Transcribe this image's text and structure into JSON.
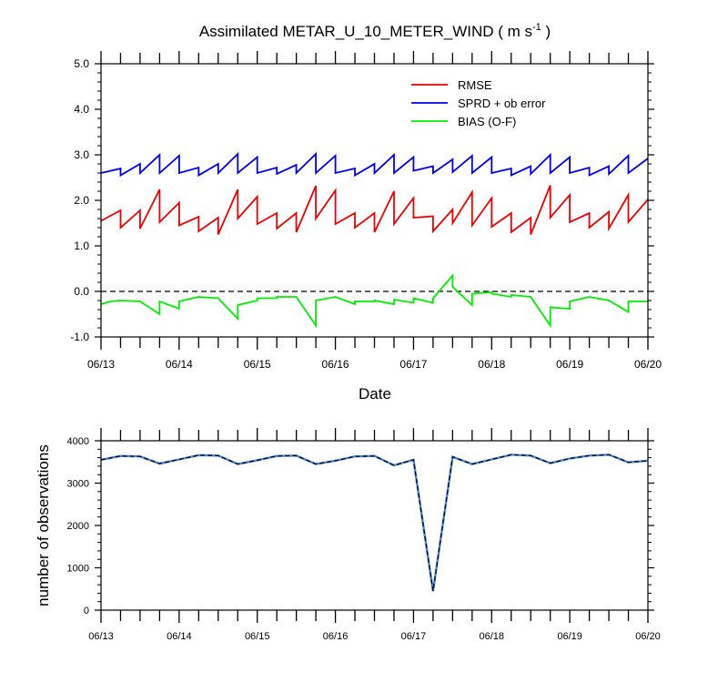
{
  "chart_data": [
    {
      "type": "line",
      "title": "Assimilated METAR_U_10_METER_WIND ( m s",
      "title_sup": "-1",
      "title_end": " )",
      "xlabel": "Date",
      "ylabel": "",
      "ylim": [
        -1.0,
        5.0
      ],
      "yticks": [
        "5.0",
        "4.0",
        "3.0",
        "2.0",
        "1.0",
        "0.0",
        "-1.0"
      ],
      "xticks": [
        "06/13",
        "06/14",
        "06/15",
        "06/16",
        "06/17",
        "06/18",
        "06/19",
        "06/20"
      ],
      "zero_line": "dashed",
      "legend_position": "top-right",
      "series": [
        {
          "name": "RMSE",
          "color": "#ee0000",
          "points": [
            [
              0,
              1.55
            ],
            [
              0.25,
              1.78
            ],
            [
              0.25,
              1.4
            ],
            [
              0.5,
              1.78
            ],
            [
              0.5,
              1.38
            ],
            [
              0.75,
              2.24
            ],
            [
              0.75,
              1.52
            ],
            [
              1,
              1.95
            ],
            [
              1,
              1.45
            ],
            [
              1.25,
              1.64
            ],
            [
              1.25,
              1.32
            ],
            [
              1.5,
              1.62
            ],
            [
              1.5,
              1.25
            ],
            [
              1.75,
              2.24
            ],
            [
              1.75,
              1.6
            ],
            [
              2,
              2.08
            ],
            [
              2,
              1.48
            ],
            [
              2.25,
              1.72
            ],
            [
              2.25,
              1.38
            ],
            [
              2.5,
              1.72
            ],
            [
              2.5,
              1.3
            ],
            [
              2.75,
              2.32
            ],
            [
              2.75,
              1.6
            ],
            [
              3,
              2.22
            ],
            [
              3,
              1.48
            ],
            [
              3.25,
              1.72
            ],
            [
              3.25,
              1.4
            ],
            [
              3.5,
              1.72
            ],
            [
              3.5,
              1.3
            ],
            [
              3.75,
              2.2
            ],
            [
              3.75,
              1.48
            ],
            [
              4,
              2.05
            ],
            [
              4,
              1.62
            ],
            [
              4.25,
              1.65
            ],
            [
              4.25,
              1.32
            ],
            [
              4.5,
              1.8
            ],
            [
              4.5,
              1.5
            ],
            [
              4.75,
              2.18
            ],
            [
              4.75,
              1.45
            ],
            [
              5,
              2.05
            ],
            [
              5,
              1.42
            ],
            [
              5.25,
              1.72
            ],
            [
              5.25,
              1.3
            ],
            [
              5.5,
              1.62
            ],
            [
              5.5,
              1.25
            ],
            [
              5.75,
              2.33
            ],
            [
              5.75,
              1.62
            ],
            [
              6,
              2.12
            ],
            [
              6,
              1.52
            ],
            [
              6.25,
              1.72
            ],
            [
              6.25,
              1.4
            ],
            [
              6.5,
              1.75
            ],
            [
              6.5,
              1.38
            ],
            [
              6.75,
              2.12
            ],
            [
              6.75,
              1.52
            ],
            [
              7,
              2.02
            ]
          ]
        },
        {
          "name": "SPRD + ob error",
          "color": "#0000ee",
          "points": [
            [
              0,
              2.6
            ],
            [
              0.25,
              2.7
            ],
            [
              0.25,
              2.55
            ],
            [
              0.5,
              2.8
            ],
            [
              0.5,
              2.6
            ],
            [
              0.75,
              3.0
            ],
            [
              0.75,
              2.6
            ],
            [
              1,
              2.98
            ],
            [
              1,
              2.6
            ],
            [
              1.25,
              2.72
            ],
            [
              1.25,
              2.55
            ],
            [
              1.5,
              2.8
            ],
            [
              1.5,
              2.6
            ],
            [
              1.75,
              3.02
            ],
            [
              1.75,
              2.6
            ],
            [
              2,
              2.95
            ],
            [
              2,
              2.6
            ],
            [
              2.25,
              2.72
            ],
            [
              2.25,
              2.58
            ],
            [
              2.5,
              2.78
            ],
            [
              2.5,
              2.6
            ],
            [
              2.75,
              3.02
            ],
            [
              2.75,
              2.6
            ],
            [
              3,
              2.98
            ],
            [
              3,
              2.6
            ],
            [
              3.25,
              2.7
            ],
            [
              3.25,
              2.55
            ],
            [
              3.5,
              2.8
            ],
            [
              3.5,
              2.6
            ],
            [
              3.75,
              3.0
            ],
            [
              3.75,
              2.6
            ],
            [
              4,
              2.95
            ],
            [
              4,
              2.65
            ],
            [
              4.25,
              2.75
            ],
            [
              4.25,
              2.6
            ],
            [
              4.5,
              2.9
            ],
            [
              4.5,
              2.62
            ],
            [
              4.75,
              2.98
            ],
            [
              4.75,
              2.6
            ],
            [
              5,
              2.95
            ],
            [
              5,
              2.6
            ],
            [
              5.25,
              2.7
            ],
            [
              5.25,
              2.55
            ],
            [
              5.5,
              2.75
            ],
            [
              5.5,
              2.58
            ],
            [
              5.75,
              3.0
            ],
            [
              5.75,
              2.6
            ],
            [
              6,
              2.95
            ],
            [
              6,
              2.6
            ],
            [
              6.25,
              2.72
            ],
            [
              6.25,
              2.55
            ],
            [
              6.5,
              2.75
            ],
            [
              6.5,
              2.58
            ],
            [
              6.75,
              2.98
            ],
            [
              6.75,
              2.6
            ],
            [
              7,
              2.92
            ]
          ]
        },
        {
          "name": "BIAS (O-F)",
          "color": "#00ee00",
          "points": [
            [
              0,
              -0.28
            ],
            [
              0.12,
              -0.22
            ],
            [
              0.25,
              -0.2
            ],
            [
              0.25,
              -0.2
            ],
            [
              0.5,
              -0.22
            ],
            [
              0.5,
              -0.22
            ],
            [
              0.75,
              -0.5
            ],
            [
              0.75,
              -0.22
            ],
            [
              1,
              -0.38
            ],
            [
              1,
              -0.22
            ],
            [
              1.25,
              -0.12
            ],
            [
              1.25,
              -0.12
            ],
            [
              1.5,
              -0.15
            ],
            [
              1.5,
              -0.15
            ],
            [
              1.75,
              -0.6
            ],
            [
              1.75,
              -0.3
            ],
            [
              2,
              -0.2
            ],
            [
              2,
              -0.15
            ],
            [
              2.25,
              -0.15
            ],
            [
              2.25,
              -0.12
            ],
            [
              2.5,
              -0.12
            ],
            [
              2.5,
              -0.12
            ],
            [
              2.75,
              -0.75
            ],
            [
              2.75,
              -0.2
            ],
            [
              3,
              -0.12
            ],
            [
              3,
              -0.12
            ],
            [
              3.25,
              -0.28
            ],
            [
              3.25,
              -0.22
            ],
            [
              3.5,
              -0.22
            ],
            [
              3.5,
              -0.2
            ],
            [
              3.75,
              -0.28
            ],
            [
              3.75,
              -0.18
            ],
            [
              4,
              -0.25
            ],
            [
              4,
              -0.15
            ],
            [
              4.25,
              -0.25
            ],
            [
              4.25,
              -0.15
            ],
            [
              4.5,
              0.35
            ],
            [
              4.5,
              0.1
            ],
            [
              4.75,
              -0.3
            ],
            [
              4.75,
              -0.05
            ],
            [
              5,
              -0.02
            ],
            [
              5,
              -0.05
            ],
            [
              5.25,
              -0.12
            ],
            [
              5.25,
              -0.08
            ],
            [
              5.5,
              -0.12
            ],
            [
              5.5,
              -0.12
            ],
            [
              5.75,
              -0.75
            ],
            [
              5.75,
              -0.35
            ],
            [
              6,
              -0.38
            ],
            [
              6,
              -0.22
            ],
            [
              6.25,
              -0.12
            ],
            [
              6.25,
              -0.12
            ],
            [
              6.5,
              -0.2
            ],
            [
              6.5,
              -0.2
            ],
            [
              6.75,
              -0.45
            ],
            [
              6.75,
              -0.22
            ],
            [
              7,
              -0.22
            ]
          ]
        }
      ]
    },
    {
      "type": "line",
      "title": "",
      "xlabel": "",
      "ylabel": "number of observations",
      "ylim": [
        0,
        4000
      ],
      "yticks": [
        "4000",
        "3000",
        "2000",
        "1000",
        "0"
      ],
      "xticks": [
        "06/13",
        "06/14",
        "06/15",
        "06/16",
        "06/17",
        "06/18",
        "06/19",
        "06/20"
      ],
      "series": [
        {
          "color": "#4a86d9",
          "dashed_overlay_color": "#000000",
          "points": [
            [
              0,
              3550
            ],
            [
              0.25,
              3640
            ],
            [
              0.5,
              3630
            ],
            [
              0.75,
              3460
            ],
            [
              1,
              3560
            ],
            [
              1.25,
              3660
            ],
            [
              1.5,
              3650
            ],
            [
              1.75,
              3450
            ],
            [
              2,
              3540
            ],
            [
              2.25,
              3640
            ],
            [
              2.5,
              3650
            ],
            [
              2.75,
              3450
            ],
            [
              3,
              3530
            ],
            [
              3.25,
              3630
            ],
            [
              3.5,
              3640
            ],
            [
              3.75,
              3420
            ],
            [
              4,
              3550
            ],
            [
              4.25,
              450
            ],
            [
              4.5,
              3620
            ],
            [
              4.75,
              3450
            ],
            [
              5,
              3560
            ],
            [
              5.25,
              3670
            ],
            [
              5.5,
              3650
            ],
            [
              5.75,
              3470
            ],
            [
              6,
              3580
            ],
            [
              6.25,
              3650
            ],
            [
              6.5,
              3670
            ],
            [
              6.75,
              3490
            ],
            [
              7,
              3530
            ]
          ]
        }
      ]
    }
  ]
}
